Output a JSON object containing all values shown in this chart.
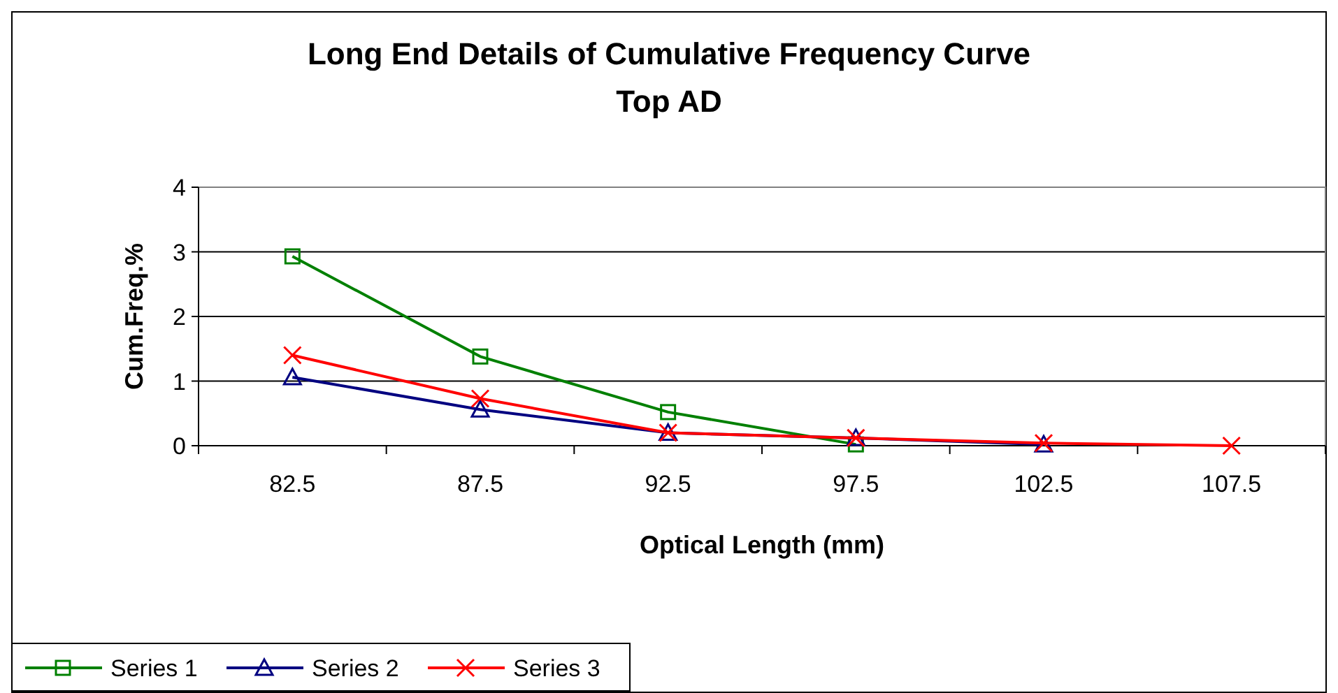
{
  "chart_data": {
    "type": "line",
    "title": "Long End Details of Cumulative Frequency Curve",
    "subtitle": "Top AD",
    "xlabel": "Optical Length (mm)",
    "ylabel": "Cum.Freq.%",
    "categories": [
      "82.5",
      "87.5",
      "92.5",
      "97.5",
      "102.5",
      "107.5"
    ],
    "series": [
      {
        "name": "Series 1",
        "color": "#008000",
        "marker": "square",
        "values": [
          2.93,
          1.38,
          0.52,
          0.02,
          null,
          null
        ]
      },
      {
        "name": "Series 2",
        "color": "#000080",
        "marker": "triangle",
        "values": [
          1.06,
          0.56,
          0.2,
          0.12,
          0.02,
          null
        ]
      },
      {
        "name": "Series 3",
        "color": "#ff0000",
        "marker": "cross",
        "values": [
          1.4,
          0.73,
          0.2,
          0.12,
          0.04,
          0
        ]
      }
    ],
    "ylim": [
      0,
      4
    ],
    "yticks": [
      0,
      1,
      2,
      3,
      4
    ],
    "grid": "y",
    "legend": "bottom left"
  }
}
